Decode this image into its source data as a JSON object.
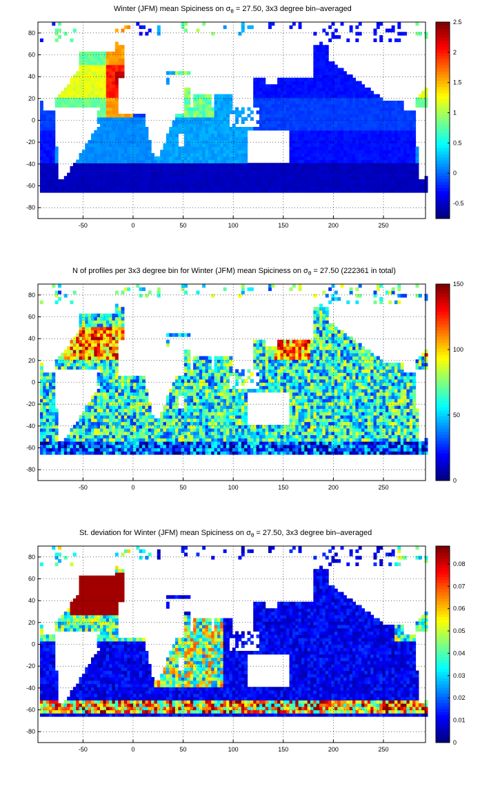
{
  "chart_data": [
    {
      "type": "heatmap",
      "title_prefix": "Winter (JFM) mean Spiciness on ",
      "sigma_symbol": "σ",
      "sigma_sub": "θ",
      "title_suffix": " = 27.50, 3x3 degree bin–averaged",
      "xlim": [
        -95,
        292
      ],
      "ylim": [
        -90,
        90
      ],
      "x_ticks": [
        -50,
        0,
        50,
        100,
        150,
        200,
        250
      ],
      "y_ticks": [
        80,
        60,
        40,
        20,
        0,
        -20,
        -40,
        -60,
        -80
      ],
      "grid": true,
      "colorbar": {
        "min": -0.75,
        "max": 2.5,
        "ticks": [
          "2.5",
          "2",
          "1.5",
          "1",
          "0.5",
          "0",
          "-0.5"
        ],
        "tick_values": [
          2.5,
          2,
          1.5,
          1,
          0.5,
          0,
          -0.5
        ]
      },
      "field": "spice"
    },
    {
      "type": "heatmap",
      "title_prefix": "N of profiles per 3x3 degree bin for Winter (JFM) mean Spiciness on ",
      "sigma_symbol": "σ",
      "sigma_sub": "θ",
      "title_suffix": " = 27.50 (222361 in total)",
      "xlim": [
        -95,
        292
      ],
      "ylim": [
        -90,
        90
      ],
      "x_ticks": [
        -50,
        0,
        50,
        100,
        150,
        200,
        250
      ],
      "y_ticks": [
        80,
        60,
        40,
        20,
        0,
        -20,
        -40,
        -60,
        -80
      ],
      "grid": true,
      "colorbar": {
        "min": 0,
        "max": 150,
        "ticks": [
          "150",
          "100",
          "50",
          "0"
        ],
        "tick_values": [
          150,
          100,
          50,
          0
        ]
      },
      "field": "count"
    },
    {
      "type": "heatmap",
      "title_prefix": "St. deviation for Winter (JFM) mean Spiciness on ",
      "sigma_symbol": "σ",
      "sigma_sub": "θ",
      "title_suffix": " = 27.50, 3x3 degree bin–averaged",
      "xlim": [
        -95,
        292
      ],
      "ylim": [
        -90,
        90
      ],
      "x_ticks": [
        -50,
        0,
        50,
        100,
        150,
        200,
        250
      ],
      "y_ticks": [
        80,
        60,
        40,
        20,
        0,
        -20,
        -40,
        -60,
        -80
      ],
      "grid": true,
      "colorbar": {
        "min": 0,
        "max": 0.088,
        "ticks": [
          "0.08",
          "0.07",
          "0.06",
          "0.05",
          "0.04",
          "0.03",
          "0.02",
          "0.01",
          "0"
        ],
        "tick_values": [
          0.08,
          0.07,
          0.06,
          0.05,
          0.04,
          0.03,
          0.02,
          0.01,
          0
        ]
      },
      "field": "std"
    }
  ],
  "colormap": "jet"
}
